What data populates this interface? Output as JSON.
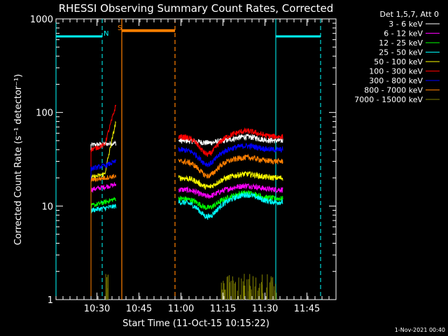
{
  "chart_data": {
    "type": "line",
    "title": "RHESSI Observing Summary Count Rates, Corrected",
    "xlabel": "Start Time (11-Oct-15 10:15:22)",
    "ylabel": "Corrected Count Rate (s⁻¹ detector⁻¹)",
    "yscale": "log",
    "ylim": [
      1,
      1000
    ],
    "x_minutes_range": [
      0,
      100
    ],
    "x_ticks": [
      {
        "label": "10:30",
        "minutes": 14.63
      },
      {
        "label": "10:45",
        "minutes": 29.63
      },
      {
        "label": "11:00",
        "minutes": 44.63
      },
      {
        "label": "11:15",
        "minutes": 59.63
      },
      {
        "label": "11:30",
        "minutes": 74.63
      },
      {
        "label": "11:45",
        "minutes": 89.63
      }
    ],
    "y_ticks": [
      {
        "label": "1",
        "value": 1
      },
      {
        "label": "10",
        "value": 10
      },
      {
        "label": "100",
        "value": 100
      },
      {
        "label": "1000",
        "value": 1000
      }
    ],
    "legend_title": "Det 1,5,7, Att 0",
    "legend_placement": "right",
    "series": [
      {
        "name": "3 - 6 keV",
        "color": "#ffffff",
        "seg1": [
          45,
          46,
          47
        ],
        "seg2_base": 50,
        "dip": 0.95,
        "hump": 1.1
      },
      {
        "name": "6 - 12 keV",
        "color": "#ff00ff",
        "seg1": [
          15,
          16,
          17
        ],
        "seg2_base": 15,
        "dip": 0.85,
        "hump": 1.1
      },
      {
        "name": "12 - 25 keV",
        "color": "#00ff00",
        "seg1": [
          10,
          11,
          12
        ],
        "seg2_base": 12,
        "dip": 0.8,
        "hump": 1.15
      },
      {
        "name": "25 - 50 keV",
        "color": "#00ffff",
        "seg1": [
          9,
          9.5,
          10
        ],
        "seg2_base": 11,
        "dip": 0.7,
        "hump": 1.2
      },
      {
        "name": "50 - 100 keV",
        "color": "#ffff00",
        "seg1": [
          20,
          22,
          80
        ],
        "seg2_base": 20,
        "dip": 0.8,
        "hump": 1.1
      },
      {
        "name": "100 - 300 keV",
        "color": "#ff0000",
        "seg1": [
          40,
          45,
          120
        ],
        "seg2_base": 55,
        "dip": 0.65,
        "hump": 1.15
      },
      {
        "name": "300 - 800 keV",
        "color": "#0000ff",
        "seg1": [
          25,
          27,
          30
        ],
        "seg2_base": 40,
        "dip": 0.7,
        "hump": 1.1
      },
      {
        "name": "800 - 7000 keV",
        "color": "#ff7f00",
        "seg1": [
          19,
          20,
          21
        ],
        "seg2_base": 30,
        "dip": 0.7,
        "hump": 1.1
      },
      {
        "name": "7000 - 15000 keV",
        "color": "#808000",
        "seg1": [
          1,
          1,
          1
        ],
        "seg2_base": 1,
        "dip": 1,
        "hump": 1
      }
    ],
    "segments": {
      "seg1": {
        "start_min": 12.5,
        "end_min": 21.4
      },
      "seg2": {
        "start_min": 43.8,
        "end_min": 81.0
      }
    },
    "markers": {
      "night_bars": [
        {
          "start_min": 0,
          "end_min": 16.5,
          "value": 650,
          "color": "#00ffff"
        },
        {
          "start_min": 78.5,
          "end_min": 94.5,
          "value": 650,
          "color": "#00ffff"
        }
      ],
      "saa_bar": {
        "start_min": 23.5,
        "end_min": 42.5,
        "value": 750,
        "color": "#ff7f00"
      },
      "night_lines": [
        {
          "min": 0,
          "style": "solid"
        },
        {
          "min": 16.5,
          "style": "dashed"
        },
        {
          "min": 78.5,
          "style": "solid"
        },
        {
          "min": 94.5,
          "style": "dashed"
        }
      ],
      "saa_lines": [
        {
          "min": 23.5,
          "style": "solid"
        },
        {
          "min": 42.5,
          "style": "dashed"
        }
      ],
      "label_s": "S",
      "label_n": "N"
    }
  },
  "footer_timestamp": "1-Nov-2021 00:40"
}
